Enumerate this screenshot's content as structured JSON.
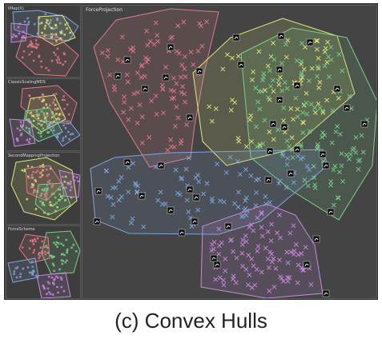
{
  "app": {
    "thumbnails": [
      {
        "title": "tMap(X)"
      },
      {
        "title": "ClassicScalingMDS"
      },
      {
        "title": "SecondMappingProjection"
      },
      {
        "title": "ForceScheme"
      }
    ],
    "main_view": {
      "title": "ForceProjection"
    }
  },
  "caption": "(c) Convex Hulls",
  "colors": {
    "red_cluster": "#e07a88",
    "yellow_cluster": "#e4e77a",
    "green_cluster": "#78d08a",
    "blue_cluster": "#7fa6dc",
    "purple_cluster": "#c98ae0",
    "background": "#434343"
  },
  "icons": [
    "x-marker-icon",
    "digit-thumbnail-icon"
  ]
}
